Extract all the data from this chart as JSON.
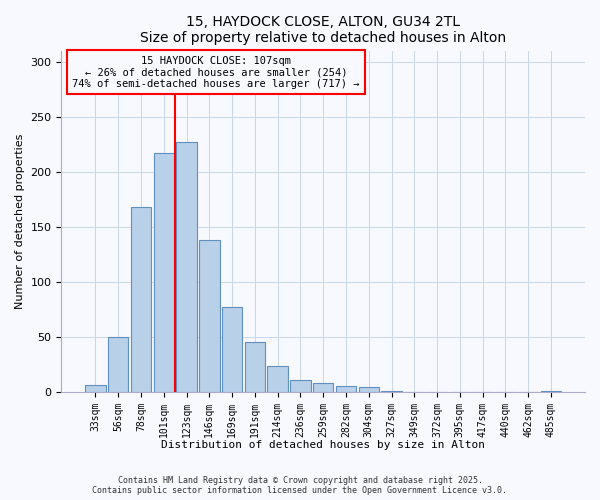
{
  "title": "15, HAYDOCK CLOSE, ALTON, GU34 2TL",
  "subtitle": "Size of property relative to detached houses in Alton",
  "xlabel": "Distribution of detached houses by size in Alton",
  "ylabel": "Number of detached properties",
  "bar_labels": [
    "33sqm",
    "56sqm",
    "78sqm",
    "101sqm",
    "123sqm",
    "146sqm",
    "169sqm",
    "191sqm",
    "214sqm",
    "236sqm",
    "259sqm",
    "282sqm",
    "304sqm",
    "327sqm",
    "349sqm",
    "372sqm",
    "395sqm",
    "417sqm",
    "440sqm",
    "462sqm",
    "485sqm"
  ],
  "bar_values": [
    7,
    50,
    168,
    217,
    227,
    138,
    77,
    46,
    24,
    11,
    8,
    6,
    5,
    1,
    0,
    0,
    0,
    0,
    0,
    0,
    1
  ],
  "bar_color": "#b8d0e8",
  "bar_edge_color": "#6090c0",
  "vline_x_index": 3.5,
  "vline_color": "red",
  "annotation_title": "15 HAYDOCK CLOSE: 107sqm",
  "annotation_line1": "← 26% of detached houses are smaller (254)",
  "annotation_line2": "74% of semi-detached houses are larger (717) →",
  "annotation_box_color": "red",
  "ylim": [
    0,
    310
  ],
  "yticks": [
    0,
    50,
    100,
    150,
    200,
    250,
    300
  ],
  "footer1": "Contains HM Land Registry data © Crown copyright and database right 2025.",
  "footer2": "Contains public sector information licensed under the Open Government Licence v3.0.",
  "bg_color": "#f8f8ff",
  "grid_color": "#c8d8e8"
}
